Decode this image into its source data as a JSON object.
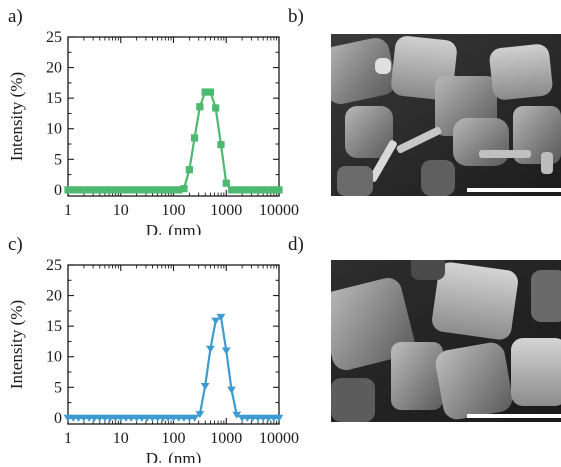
{
  "panels": {
    "a": "a)",
    "b": "b)",
    "c": "c)",
    "d": "d)"
  },
  "colors": {
    "green": "#4db870",
    "blue": "#3d9bd0",
    "axis": "#1a1a1a"
  },
  "chart_data": [
    {
      "type": "line",
      "panel": "a",
      "xlabel": "D",
      "xlabel_sub": "h",
      "xlabel_unit": " (nm)",
      "ylabel": "Intensity (%)",
      "xscale": "log",
      "xlim": [
        1,
        10000
      ],
      "ylim": [
        -1,
        25
      ],
      "xticks": [
        1,
        10,
        100,
        1000,
        10000
      ],
      "xtick_labels": [
        "1",
        "10",
        "100",
        "1000",
        "10000"
      ],
      "yticks": [
        0,
        5,
        10,
        15,
        20,
        25
      ],
      "ytick_labels": [
        "0",
        "5",
        "10",
        "15",
        "20",
        "25"
      ],
      "marker": "square",
      "color": "#4db870",
      "series": [
        {
          "x": [
            1,
            1.26,
            1.58,
            2,
            2.51,
            3.16,
            3.98,
            5.01,
            6.31,
            7.94,
            10,
            12.6,
            15.8,
            20,
            25.1,
            31.6,
            39.8,
            50.1,
            63.1,
            79.4,
            100,
            126,
            158,
            200,
            251,
            316,
            398,
            501,
            631,
            794,
            1000,
            1260,
            1580,
            2000,
            2510,
            3160,
            3980,
            5010,
            6310,
            7940,
            10000
          ],
          "y": [
            0,
            0,
            0,
            0,
            0,
            0,
            0,
            0,
            0,
            0,
            0,
            0,
            0,
            0,
            0,
            0,
            0,
            0,
            0,
            0,
            0,
            0,
            0.2,
            3.3,
            8.5,
            13.6,
            16,
            16,
            13.4,
            7.4,
            1.1,
            0,
            0,
            0,
            0,
            0,
            0,
            0,
            0,
            0,
            0
          ]
        }
      ]
    },
    {
      "type": "line",
      "panel": "c",
      "xlabel": "D",
      "xlabel_sub": "h",
      "xlabel_unit": " (nm)",
      "ylabel": "Intensity (%)",
      "xscale": "log",
      "xlim": [
        1,
        10000
      ],
      "ylim": [
        -1,
        25
      ],
      "xticks": [
        1,
        10,
        100,
        1000,
        10000
      ],
      "xtick_labels": [
        "1",
        "10",
        "100",
        "1000",
        "10000"
      ],
      "yticks": [
        0,
        5,
        10,
        15,
        20,
        25
      ],
      "ytick_labels": [
        "0",
        "5",
        "10",
        "15",
        "20",
        "25"
      ],
      "marker": "triangle-down",
      "color": "#3d9bd0",
      "series": [
        {
          "x": [
            1,
            1.26,
            1.58,
            2,
            2.51,
            3.16,
            3.98,
            5.01,
            6.31,
            7.94,
            10,
            12.6,
            15.8,
            20,
            25.1,
            31.6,
            39.8,
            50.1,
            63.1,
            79.4,
            100,
            126,
            158,
            200,
            251,
            316,
            398,
            501,
            631,
            794,
            1000,
            1260,
            1580,
            2000,
            2510,
            3160,
            3980,
            5010,
            6310,
            7940,
            10000
          ],
          "y": [
            0,
            0,
            0,
            0,
            0,
            0,
            0,
            0,
            0,
            0,
            0,
            0,
            0,
            0,
            0,
            0,
            0,
            0,
            0,
            0,
            0,
            0,
            0,
            0,
            0,
            0.6,
            5.2,
            11.3,
            15.9,
            16.5,
            11,
            4.6,
            0.5,
            0,
            0,
            0,
            0,
            0,
            0,
            0,
            0
          ]
        }
      ]
    }
  ]
}
